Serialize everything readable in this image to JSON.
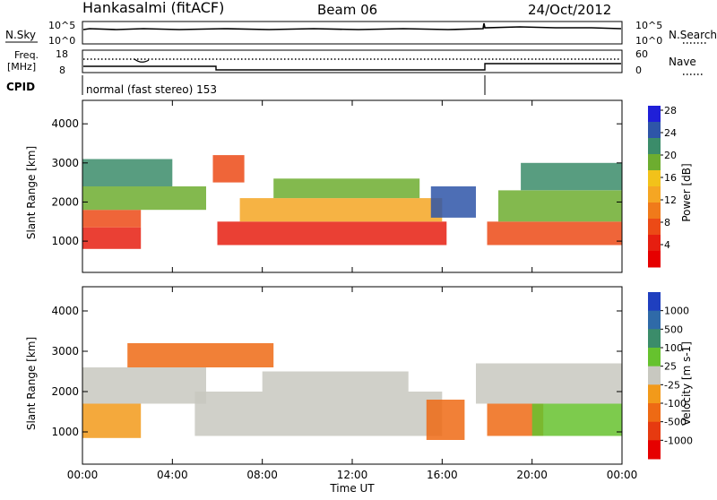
{
  "header": {
    "station": "Hankasalmi (fitACF)",
    "beam": "Beam 06",
    "date": "24/Oct/2012"
  },
  "top_panels": {
    "nsky_label": "N.Sky",
    "nsearch_label": "N.Search",
    "nsky_ticks": [
      "10^5",
      "10^0"
    ],
    "nsky_right_ticks": [
      "10^5",
      "10^0"
    ],
    "freq_label_1": "Freq.",
    "freq_label_2": "[MHz]",
    "freq_ticks": [
      "18",
      "8"
    ],
    "nave_label": "Nave",
    "nave_ticks": [
      "60",
      "0"
    ],
    "cpid_label": "CPID",
    "cpid_text": "normal (fast stereo) 153"
  },
  "chart_data": [
    {
      "type": "heatmap",
      "title": "",
      "xlabel": "Time UT",
      "ylabel": "Slant Range [km]",
      "x_tick_labels": [
        "00:00",
        "04:00",
        "08:00",
        "12:00",
        "16:00",
        "20:00",
        "00:00"
      ],
      "y_tick_labels": [
        "1000",
        "2000",
        "3000",
        "4000"
      ],
      "xlim": [
        0,
        24
      ],
      "ylim": [
        200,
        4600
      ],
      "colorbar": {
        "label": "Power [dB]",
        "ticks": [
          "4",
          "8",
          "12",
          "16",
          "20",
          "24",
          "28"
        ],
        "range": [
          0,
          30
        ],
        "colors": [
          "#1f1fd8",
          "#2e55a8",
          "#3b8c6a",
          "#6dad2f",
          "#f2c21a",
          "#f5a623",
          "#f07a1a",
          "#ec4a16",
          "#e61e10",
          "#e60000"
        ]
      },
      "bands": [
        {
          "t0": 0.0,
          "t1": 2.6,
          "r0": 800,
          "r1": 1350,
          "color": "#e61e10"
        },
        {
          "t0": 0.0,
          "t1": 2.6,
          "r0": 1350,
          "r1": 1800,
          "color": "#ec4a16"
        },
        {
          "t0": 0.0,
          "t1": 5.5,
          "r0": 1800,
          "r1": 2400,
          "color": "#6dad2f"
        },
        {
          "t0": 0.0,
          "t1": 4.0,
          "r0": 2400,
          "r1": 3100,
          "color": "#3b8c6a"
        },
        {
          "t0": 5.8,
          "t1": 7.2,
          "r0": 2500,
          "r1": 3200,
          "color": "#ec4a16"
        },
        {
          "t0": 6.0,
          "t1": 16.2,
          "r0": 900,
          "r1": 1500,
          "color": "#e61e10"
        },
        {
          "t0": 7.0,
          "t1": 16.0,
          "r0": 1500,
          "r1": 2100,
          "color": "#f5a623"
        },
        {
          "t0": 8.5,
          "t1": 15.0,
          "r0": 2100,
          "r1": 2600,
          "color": "#6dad2f"
        },
        {
          "t0": 15.5,
          "t1": 17.5,
          "r0": 1600,
          "r1": 2400,
          "color": "#2e55a8"
        },
        {
          "t0": 18.0,
          "t1": 24.0,
          "r0": 900,
          "r1": 1500,
          "color": "#ec4a16"
        },
        {
          "t0": 18.5,
          "t1": 24.0,
          "r0": 1500,
          "r1": 2300,
          "color": "#6dad2f"
        },
        {
          "t0": 19.5,
          "t1": 24.0,
          "r0": 2300,
          "r1": 3000,
          "color": "#3b8c6a"
        }
      ]
    },
    {
      "type": "heatmap",
      "title": "",
      "xlabel": "Time UT",
      "ylabel": "Slant Range [km]",
      "x_tick_labels": [
        "00:00",
        "04:00",
        "08:00",
        "12:00",
        "16:00",
        "20:00",
        "00:00"
      ],
      "y_tick_labels": [
        "1000",
        "2000",
        "3000",
        "4000"
      ],
      "xlim": [
        0,
        24
      ],
      "ylim": [
        200,
        4600
      ],
      "colorbar": {
        "label": "Velocity [m s-1]",
        "ticks": [
          "1000",
          "500",
          "100",
          "25",
          "-25",
          "-100",
          "-500",
          "-1000"
        ],
        "colors": [
          "#1f3fbf",
          "#2f6aa8",
          "#3b8c6a",
          "#66c22e",
          "#c8c8c0",
          "#f29a1a",
          "#ee6a14",
          "#e63a10",
          "#e60000"
        ]
      },
      "bands": [
        {
          "t0": 0.0,
          "t1": 2.6,
          "r0": 850,
          "r1": 1700,
          "color": "#f29a1a"
        },
        {
          "t0": 0.0,
          "t1": 5.5,
          "r0": 1700,
          "r1": 2600,
          "color": "#c8c8c0"
        },
        {
          "t0": 2.0,
          "t1": 8.5,
          "r0": 2600,
          "r1": 3200,
          "color": "#ee6a14"
        },
        {
          "t0": 5.0,
          "t1": 16.0,
          "r0": 900,
          "r1": 2000,
          "color": "#c8c8c0"
        },
        {
          "t0": 8.0,
          "t1": 14.5,
          "r0": 2000,
          "r1": 2500,
          "color": "#c8c8c0"
        },
        {
          "t0": 15.3,
          "t1": 17.0,
          "r0": 800,
          "r1": 1800,
          "color": "#ee6a14"
        },
        {
          "t0": 18.0,
          "t1": 20.5,
          "r0": 900,
          "r1": 1700,
          "color": "#ee6a14"
        },
        {
          "t0": 17.5,
          "t1": 24.0,
          "r0": 1700,
          "r1": 2700,
          "color": "#c8c8c0"
        },
        {
          "t0": 20.0,
          "t1": 24.0,
          "r0": 900,
          "r1": 1700,
          "color": "#66c22e"
        }
      ]
    }
  ]
}
